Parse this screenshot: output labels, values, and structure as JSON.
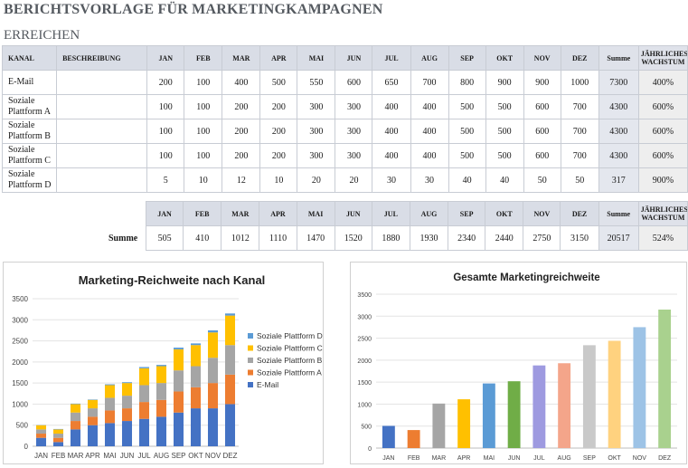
{
  "page": {
    "title": "BERICHTSVORLAGE FÜR MARKETINGKAMPAGNEN",
    "subtitle": "ERREICHEN"
  },
  "table": {
    "headers": [
      "KANAL",
      "BESCHREIBUNG",
      "JAN",
      "FEB",
      "MAR",
      "APR",
      "MAI",
      "JUN",
      "JUL",
      "AUG",
      "SEP",
      "OKT",
      "NOV",
      "DEZ",
      "Summe",
      "JÄHRLICHES WACHSTUM"
    ],
    "rows": [
      {
        "channel": "E-Mail",
        "description": "",
        "values": [
          "200",
          "100",
          "400",
          "500",
          "550",
          "600",
          "650",
          "700",
          "800",
          "900",
          "900",
          "1000"
        ],
        "sum": "7300",
        "growth": "400%"
      },
      {
        "channel": "Soziale Plattform A",
        "description": "",
        "values": [
          "100",
          "100",
          "200",
          "200",
          "300",
          "300",
          "400",
          "400",
          "500",
          "500",
          "600",
          "700"
        ],
        "sum": "4300",
        "growth": "600%"
      },
      {
        "channel": "Soziale Plattform B",
        "description": "",
        "values": [
          "100",
          "100",
          "200",
          "200",
          "300",
          "300",
          "400",
          "400",
          "500",
          "500",
          "600",
          "700"
        ],
        "sum": "4300",
        "growth": "600%"
      },
      {
        "channel": "Soziale Plattform C",
        "description": "",
        "values": [
          "100",
          "100",
          "200",
          "200",
          "300",
          "300",
          "400",
          "400",
          "500",
          "500",
          "600",
          "700"
        ],
        "sum": "4300",
        "growth": "600%"
      },
      {
        "channel": "Soziale Plattform D",
        "description": "",
        "values": [
          "5",
          "10",
          "12",
          "10",
          "20",
          "20",
          "30",
          "30",
          "40",
          "40",
          "50",
          "50"
        ],
        "sum": "317",
        "growth": "900%"
      }
    ]
  },
  "totals": {
    "label": "Summe",
    "headers": [
      "JAN",
      "FEB",
      "MAR",
      "APR",
      "MAI",
      "JUN",
      "JUL",
      "AUG",
      "SEP",
      "OKT",
      "NOV",
      "DEZ",
      "Summe",
      "JÄHRLICHES WACHSTUM"
    ],
    "values": [
      "505",
      "410",
      "1012",
      "1110",
      "1470",
      "1520",
      "1880",
      "1930",
      "2340",
      "2440",
      "2750",
      "3150",
      "20517",
      "524%"
    ]
  },
  "chart_data": [
    {
      "type": "bar",
      "stacked": true,
      "title": "Marketing-Reichweite nach Kanal",
      "categories": [
        "JAN",
        "FEB",
        "MAR",
        "APR",
        "MAI",
        "JUN",
        "JUL",
        "AUG",
        "SEP",
        "OKT",
        "NOV",
        "DEZ"
      ],
      "ylim": [
        0,
        3500
      ],
      "yticks": [
        "0",
        "500",
        "1000",
        "1500",
        "2000",
        "2500",
        "3000",
        "3500"
      ],
      "grid": true,
      "legend": "right",
      "series": [
        {
          "name": "E-Mail",
          "color": "#4472c4",
          "values": [
            200,
            100,
            400,
            500,
            550,
            600,
            650,
            700,
            800,
            900,
            900,
            1000
          ]
        },
        {
          "name": "Soziale Plattform A",
          "color": "#ed7d31",
          "values": [
            100,
            100,
            200,
            200,
            300,
            300,
            400,
            400,
            500,
            500,
            600,
            700
          ]
        },
        {
          "name": "Soziale Plattform B",
          "color": "#a5a5a5",
          "values": [
            100,
            100,
            200,
            200,
            300,
            300,
            400,
            400,
            500,
            500,
            600,
            700
          ]
        },
        {
          "name": "Soziale Plattform C",
          "color": "#ffc000",
          "values": [
            100,
            100,
            200,
            200,
            300,
            300,
            400,
            400,
            500,
            500,
            600,
            700
          ]
        },
        {
          "name": "Soziale Plattform D",
          "color": "#5b9bd5",
          "values": [
            5,
            10,
            12,
            10,
            20,
            20,
            30,
            30,
            40,
            40,
            50,
            50
          ]
        }
      ],
      "legend_order": [
        "Soziale Plattform D",
        "Soziale Plattform C",
        "Soziale Plattform B",
        "Soziale Plattform A",
        "E-Mail"
      ]
    },
    {
      "type": "bar",
      "title": "Gesamte Marketingreichweite",
      "categories": [
        "JAN",
        "FEB",
        "MAR",
        "APR",
        "MAI",
        "JUN",
        "JUL",
        "AUG",
        "SEP",
        "OKT",
        "NOV",
        "DEZ"
      ],
      "ylim": [
        0,
        3500
      ],
      "yticks": [
        "0",
        "500",
        "1000",
        "1500",
        "2000",
        "2500",
        "3000",
        "3500"
      ],
      "grid": true,
      "values": [
        505,
        410,
        1012,
        1110,
        1470,
        1520,
        1880,
        1930,
        2340,
        2440,
        2750,
        3150
      ],
      "colors": [
        "#4472c4",
        "#ed7d31",
        "#a5a5a5",
        "#ffc000",
        "#5b9bd5",
        "#70ad47",
        "#9e9ae0",
        "#f4a58a",
        "#c9c9c9",
        "#ffd27f",
        "#9dc3e6",
        "#a9d18e"
      ]
    }
  ]
}
